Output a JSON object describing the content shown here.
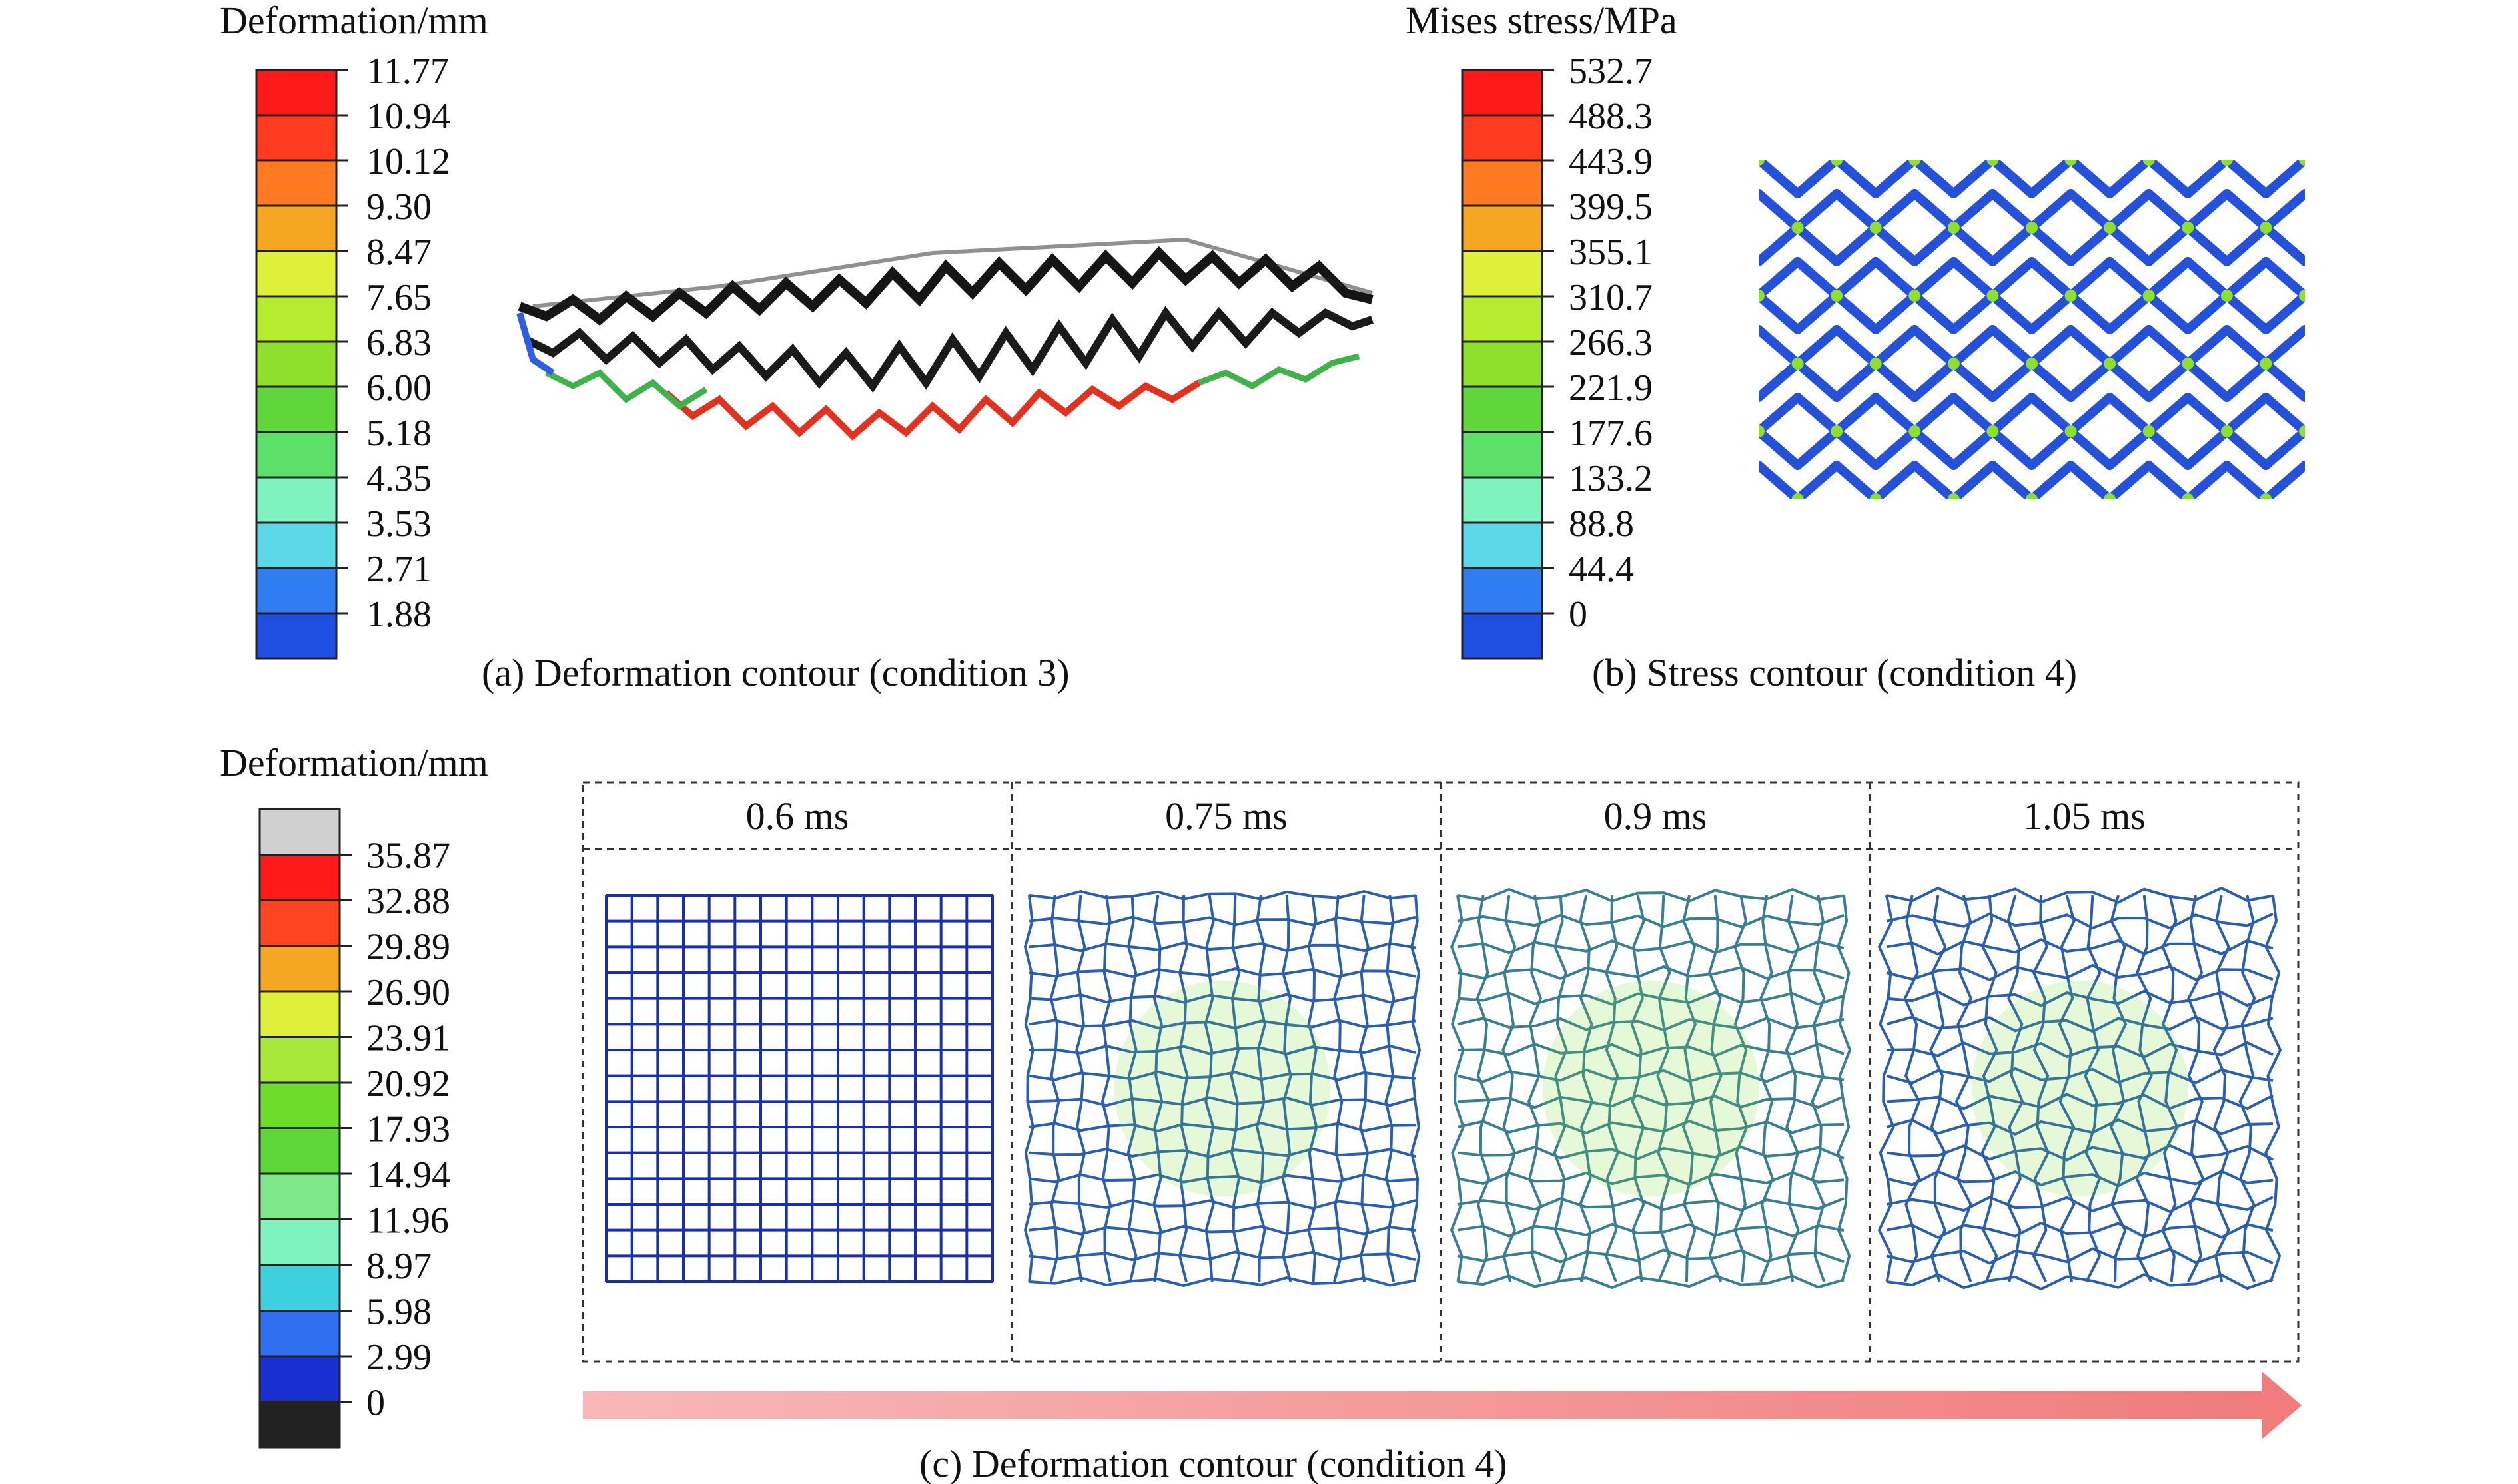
{
  "panel_a": {
    "legend_title": "Deformation/mm",
    "legend_values": [
      "11.77",
      "10.94",
      "10.12",
      "9.30",
      "8.47",
      "7.65",
      "6.83",
      "6.00",
      "5.18",
      "4.35",
      "3.53",
      "2.71",
      "1.88"
    ],
    "legend_colors": [
      "#ff1a1a",
      "#ff3b1f",
      "#ff7a22",
      "#f5a623",
      "#dff03a",
      "#b6ec2f",
      "#8ee02c",
      "#5fd63a",
      "#5ce06a",
      "#7ff2c0",
      "#5ad8e8",
      "#2f7df0",
      "#1f4fe0"
    ],
    "caption": "(a) Deformation contour (condition 3)"
  },
  "panel_b": {
    "legend_title": "Mises stress/MPa",
    "legend_values": [
      "532.7",
      "488.3",
      "443.9",
      "399.5",
      "355.1",
      "310.7",
      "266.3",
      "221.9",
      "177.6",
      "133.2",
      "88.8",
      "44.4",
      "0"
    ],
    "legend_colors": [
      "#ff1a1a",
      "#ff3b1f",
      "#ff7a22",
      "#f5a623",
      "#dff03a",
      "#b6ec2f",
      "#8ee02c",
      "#5fd63a",
      "#5ce06a",
      "#7ff2c0",
      "#5ad8e8",
      "#2f7df0",
      "#1f4fe0"
    ],
    "caption": "(b) Stress contour (condition 4)"
  },
  "panel_c": {
    "legend_title": "Deformation/mm",
    "legend_values": [
      "35.87",
      "32.88",
      "29.89",
      "26.90",
      "23.91",
      "20.92",
      "17.93",
      "14.94",
      "11.96",
      "8.97",
      "5.98",
      "2.99",
      "0"
    ],
    "legend_colors": [
      "#d0d0d0",
      "#ff1a1a",
      "#ff4422",
      "#f5a623",
      "#dff03a",
      "#a8e83a",
      "#6fdc2c",
      "#5fd63a",
      "#7fe88a",
      "#7ff2c0",
      "#3fd0e0",
      "#2f6ff0",
      "#1a2fd0",
      "#222222"
    ],
    "time_labels": [
      "0.6 ms",
      "0.75 ms",
      "0.9 ms",
      "1.05 ms"
    ],
    "caption": "(c) Deformation contour (condition 4)",
    "arrow_color": "#f4a3a3"
  }
}
